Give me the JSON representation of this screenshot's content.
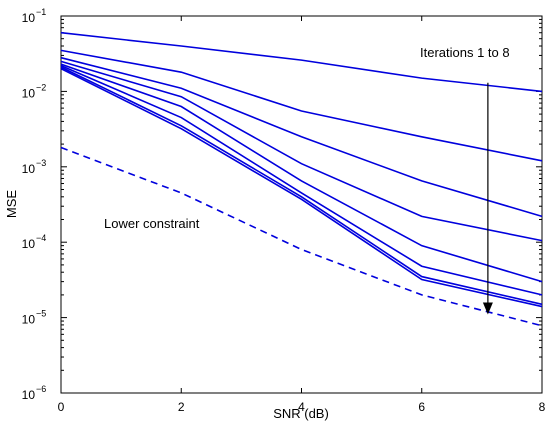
{
  "chart_data": {
    "type": "line",
    "xlabel": "SNR (dB)",
    "ylabel": "MSE",
    "xlim": [
      0,
      8
    ],
    "ylim": [
      1e-06,
      0.1
    ],
    "yscale": "log",
    "x_ticks": [
      0,
      2,
      4,
      6,
      8
    ],
    "y_tick_exponents": [
      -1,
      -2,
      -3,
      -4,
      -5,
      -6
    ],
    "grid": false,
    "line_color": "#0000dd",
    "x": [
      0,
      2,
      4,
      6,
      8
    ],
    "series": [
      {
        "values": [
          0.06,
          0.04,
          0.026,
          0.015,
          0.01
        ],
        "style": "solid"
      },
      {
        "values": [
          0.035,
          0.018,
          0.0055,
          0.0025,
          0.0012
        ],
        "style": "solid"
      },
      {
        "values": [
          0.028,
          0.011,
          0.0025,
          0.00065,
          0.00022
        ],
        "style": "solid"
      },
      {
        "values": [
          0.025,
          0.0085,
          0.0011,
          0.00022,
          0.000105
        ],
        "style": "solid"
      },
      {
        "values": [
          0.023,
          0.0063,
          0.00065,
          9e-05,
          3e-05
        ],
        "style": "solid"
      },
      {
        "values": [
          0.022,
          0.0045,
          0.00045,
          4.8e-05,
          2e-05
        ],
        "style": "solid"
      },
      {
        "values": [
          0.021,
          0.0035,
          0.0004,
          3.5e-05,
          1.5e-05
        ],
        "style": "solid"
      },
      {
        "values": [
          0.02,
          0.0032,
          0.00037,
          3.2e-05,
          1.4e-05
        ],
        "style": "solid"
      },
      {
        "values": [
          0.0018,
          0.00045,
          8e-05,
          2e-05,
          7.8e-06
        ],
        "style": "dashed"
      }
    ],
    "annotations": {
      "iterations_label": "Iterations 1 to 8",
      "lower_label": "Lower constraint"
    },
    "arrow": {
      "x": 7.1,
      "from_y": 0.013,
      "to_y": 1.1e-05
    }
  }
}
